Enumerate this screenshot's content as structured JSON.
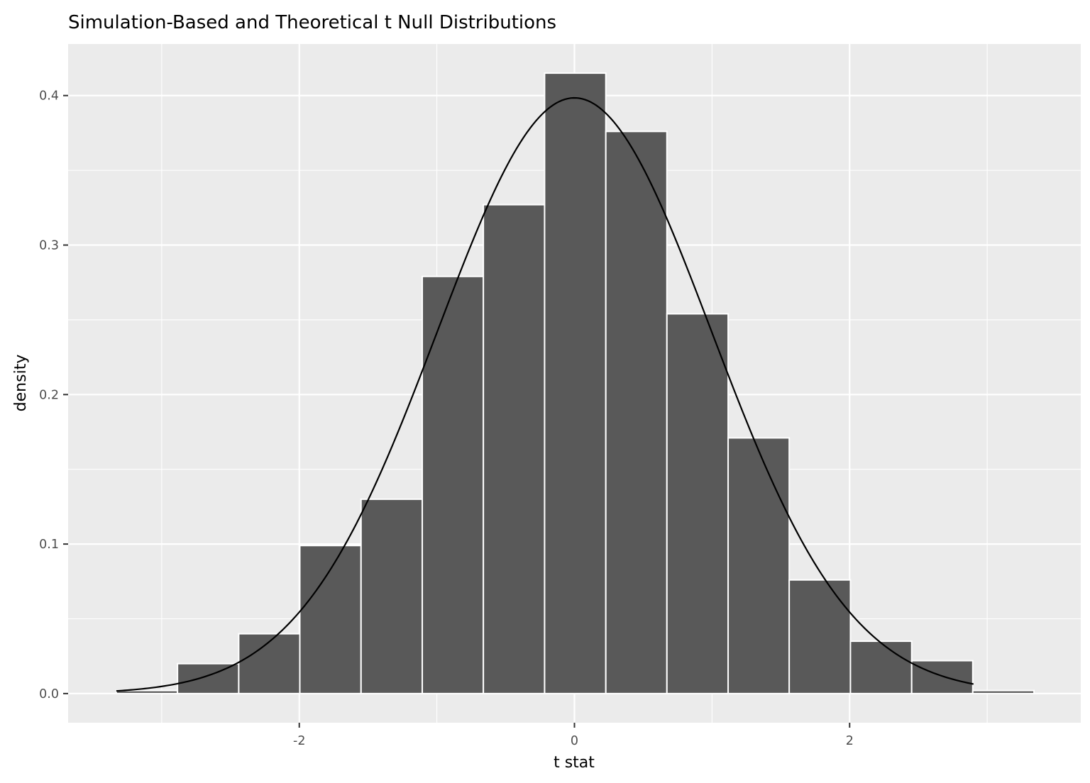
{
  "chart_data": {
    "type": "bar",
    "title": "Simulation-Based and Theoretical t Null Distributions",
    "xlabel": "t stat",
    "ylabel": "density",
    "xlim": [
      -3.68,
      3.68
    ],
    "ylim": [
      -0.0195,
      0.4345
    ],
    "x_ticks": [
      -2,
      0,
      2
    ],
    "x_tick_labels": [
      "-2",
      "0",
      "2"
    ],
    "y_ticks": [
      0.0,
      0.1,
      0.2,
      0.3,
      0.4
    ],
    "y_tick_labels": [
      "0.0",
      "0.1",
      "0.2",
      "0.3",
      "0.4"
    ],
    "grid": true,
    "bin_edges": [
      -3.33,
      -2.885,
      -2.44,
      -1.996,
      -1.551,
      -1.106,
      -0.662,
      -0.217,
      0.228,
      0.672,
      1.117,
      1.561,
      2.006,
      2.451,
      2.895,
      3.34
    ],
    "values": [
      0.002,
      0.02,
      0.04,
      0.099,
      0.13,
      0.279,
      0.327,
      0.415,
      0.376,
      0.254,
      0.171,
      0.076,
      0.035,
      0.022,
      0.002
    ],
    "bar_fill": "#595959",
    "bar_outline": "#ffffff",
    "panel_background": "#ebebeb",
    "grid_color": "#ffffff",
    "curve": {
      "distribution": "t",
      "x_range": [
        -3.33,
        2.9
      ],
      "color": "#000000"
    }
  }
}
